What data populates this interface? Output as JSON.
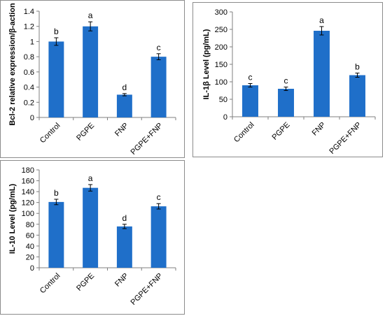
{
  "colors": {
    "bar": "#1f6fc9",
    "axis": "#7f7f7f",
    "error": "#000000"
  },
  "chart_data": [
    {
      "type": "bar",
      "title": "",
      "xlabel": "",
      "ylabel": "Bcl-2 relative expression/β-action",
      "categories": [
        "Control",
        "PGPE",
        "FNP",
        "PGPE+FNP"
      ],
      "values": [
        1.0,
        1.2,
        0.3,
        0.8
      ],
      "errors": [
        0.05,
        0.06,
        0.015,
        0.04
      ],
      "significance": [
        "b",
        "a",
        "d",
        "c"
      ],
      "ylim": [
        0,
        1.4
      ],
      "ytick_step": 0.2,
      "yticks": [
        "0",
        "0.2",
        "0.4",
        "0.6",
        "0.8",
        "1",
        "1.2",
        "1.4"
      ],
      "grid": false,
      "legend": "none"
    },
    {
      "type": "bar",
      "title": "",
      "xlabel": "",
      "ylabel": "IL-1β Level (pg/mL)",
      "categories": [
        "Control",
        "PGPE",
        "FNP",
        "PGPE+FNP"
      ],
      "values": [
        90,
        80,
        246,
        119
      ],
      "errors": [
        5,
        5,
        12,
        6
      ],
      "significance": [
        "c",
        "c",
        "a",
        "b"
      ],
      "ylim": [
        0,
        300
      ],
      "ytick_step": 50,
      "yticks": [
        "0",
        "50",
        "100",
        "150",
        "200",
        "250",
        "300"
      ],
      "grid": false,
      "legend": "none"
    },
    {
      "type": "bar",
      "title": "",
      "xlabel": "",
      "ylabel": "IL-10 Level (pg/mL)",
      "categories": [
        "Control",
        "PGPE",
        "FNP",
        "PGPE+FNP"
      ],
      "values": [
        121,
        147,
        76,
        113
      ],
      "errors": [
        5,
        6,
        4,
        5
      ],
      "significance": [
        "b",
        "a",
        "d",
        "c"
      ],
      "ylim": [
        0,
        180
      ],
      "ytick_step": 20,
      "yticks": [
        "0",
        "20",
        "40",
        "60",
        "80",
        "100",
        "120",
        "140",
        "160",
        "180"
      ],
      "grid": false,
      "legend": "none"
    }
  ]
}
